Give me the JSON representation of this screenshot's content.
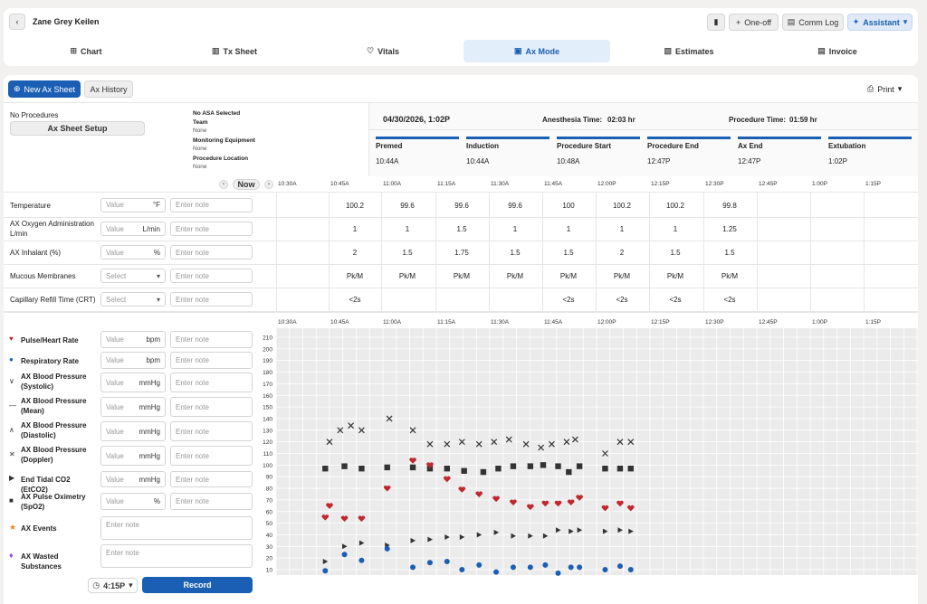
{
  "header": {
    "back_label": "‹",
    "patient_name": "Zane Grey Keilen",
    "oneoff_label": "One-off",
    "commlog_label": "Comm Log",
    "assistant_label": "Assistant"
  },
  "tabs": [
    {
      "label": "Chart"
    },
    {
      "label": "Tx Sheet"
    },
    {
      "label": "Vitals"
    },
    {
      "label": "Ax Mode"
    },
    {
      "label": "Estimates"
    },
    {
      "label": "Invoice"
    }
  ],
  "toolbar": {
    "new_sheet_label": "New Ax Sheet",
    "history_label": "Ax History",
    "print_label": "Print"
  },
  "setup": {
    "no_procedures": "No Procedures",
    "setup_label": "Ax Sheet Setup",
    "asa": "No ASA Selected",
    "team_label": "Team",
    "team_value": "None",
    "equipment_label": "Monitoring Equipment",
    "equipment_value": "None",
    "location_label": "Procedure Location",
    "location_value": "None"
  },
  "summary": {
    "datetime": "04/30/2026, 1:02P",
    "anesthesia_label": "Anesthesia Time:",
    "anesthesia_value": "02:03 hr",
    "procedure_label": "Procedure Time:",
    "procedure_value": "01:59 hr"
  },
  "milestones": [
    {
      "label": "Premed",
      "time": "10:44A"
    },
    {
      "label": "Induction",
      "time": "10:44A"
    },
    {
      "label": "Procedure Start",
      "time": "10:48A"
    },
    {
      "label": "Procedure End",
      "time": "12:47P"
    },
    {
      "label": "Ax End",
      "time": "12:47P"
    },
    {
      "label": "Extubation",
      "time": "1:02P"
    }
  ],
  "now_label": "Now",
  "times": [
    "10:30A",
    "10:45A",
    "11:00A",
    "11:15A",
    "11:30A",
    "11:45A",
    "12:00P",
    "12:15P",
    "12:30P",
    "12:45P",
    "1:00P",
    "1:15P"
  ],
  "placeholders": {
    "value": "Value",
    "note": "Enter note",
    "select": "Select"
  },
  "params": [
    {
      "label": "Temperature",
      "unit": "°F",
      "values": [
        "",
        "100.2",
        "99.6",
        "99.6",
        "99.6",
        "100",
        "100.2",
        "100.2",
        "99.8",
        "",
        "",
        ""
      ]
    },
    {
      "label": "AX Oxygen Administration L/min",
      "unit": "L/min",
      "values": [
        "",
        "1",
        "1",
        "1.5",
        "1",
        "1",
        "1",
        "1",
        "1.25",
        "",
        "",
        ""
      ]
    },
    {
      "label": "AX Inhalant (%)",
      "unit": "%",
      "values": [
        "",
        "2",
        "1.5",
        "1.75",
        "1.5",
        "1.5",
        "2",
        "1.5",
        "1.5",
        "",
        "",
        ""
      ]
    },
    {
      "label": "Mucous Membranes",
      "unit": "",
      "values": [
        "",
        "Pk/M",
        "Pk/M",
        "Pk/M",
        "Pk/M",
        "Pk/M",
        "Pk/M",
        "Pk/M",
        "Pk/M",
        "",
        "",
        ""
      ]
    },
    {
      "label": "Capillary Refill Time (CRT)",
      "unit": "",
      "values": [
        "",
        "<2s",
        "",
        "",
        "",
        "<2s",
        "<2s",
        "<2s",
        "<2s",
        "",
        "",
        ""
      ]
    }
  ],
  "vitals": [
    {
      "label": "Pulse/Heart Rate",
      "unit": "bpm",
      "icon": "heart-icon"
    },
    {
      "label": "Respiratory Rate",
      "unit": "bpm",
      "icon": "dot-icon"
    },
    {
      "label": "AX Blood Pressure (Systolic)",
      "unit": "mmHg",
      "icon": "chevron-down-icon"
    },
    {
      "label": "AX Blood Pressure (Mean)",
      "unit": "mmHg",
      "icon": "dash-icon"
    },
    {
      "label": "AX Blood Pressure (Diastolic)",
      "unit": "mmHg",
      "icon": "chevron-up-icon"
    },
    {
      "label": "AX Blood Pressure (Doppler)",
      "unit": "mmHg",
      "icon": "x-icon"
    },
    {
      "label": "End Tidal CO2 (EtCO2)",
      "unit": "mmHg",
      "icon": "triangle-right-icon"
    },
    {
      "label": "AX Pulse Oximetry (SpO2)",
      "unit": "%",
      "icon": "square-icon"
    }
  ],
  "events": [
    {
      "label": "AX Events",
      "icon": "star-icon"
    },
    {
      "label": "AX Wasted Substances",
      "icon": "drop-icon"
    }
  ],
  "record": {
    "time": "4:15P",
    "label": "Record"
  },
  "colors": {
    "accent": "#1a5fb4",
    "heart": "#c0282d",
    "resp": "#1a5fb4",
    "dark": "#333333",
    "event": "#e8892b",
    "wasted": "#9b4fd0"
  },
  "chart_data": {
    "type": "scatter",
    "ylim": [
      10,
      210
    ],
    "yticks": [
      10,
      20,
      30,
      40,
      50,
      60,
      70,
      80,
      90,
      100,
      110,
      120,
      130,
      140,
      150,
      160,
      170,
      180,
      190,
      200,
      210
    ],
    "x_labels": [
      "10:30A",
      "10:45A",
      "11:00A",
      "11:15A",
      "11:30A",
      "11:45A",
      "12:00P",
      "12:15P",
      "12:30P",
      "12:45P",
      "1:00P",
      "1:15P"
    ],
    "series": [
      {
        "marker": "x",
        "points": [
          [
            10.75,
            120
          ],
          [
            10.8,
            130
          ],
          [
            10.85,
            134
          ],
          [
            10.9,
            130
          ],
          [
            11.03,
            140
          ],
          [
            11.14,
            130
          ],
          [
            11.22,
            118
          ],
          [
            11.3,
            118
          ],
          [
            11.37,
            120
          ],
          [
            11.45,
            118
          ],
          [
            11.52,
            120
          ],
          [
            11.59,
            122
          ],
          [
            11.67,
            118
          ],
          [
            11.74,
            115
          ],
          [
            11.79,
            118
          ],
          [
            11.86,
            120
          ],
          [
            11.9,
            122
          ],
          [
            12.04,
            110
          ],
          [
            12.11,
            120
          ],
          [
            12.16,
            120
          ]
        ]
      },
      {
        "marker": "square",
        "points": [
          [
            10.73,
            97
          ],
          [
            10.82,
            99
          ],
          [
            10.9,
            97
          ],
          [
            11.02,
            98
          ],
          [
            11.14,
            98
          ],
          [
            11.22,
            97
          ],
          [
            11.3,
            97
          ],
          [
            11.38,
            95
          ],
          [
            11.47,
            94
          ],
          [
            11.54,
            97
          ],
          [
            11.61,
            99
          ],
          [
            11.69,
            99
          ],
          [
            11.75,
            100
          ],
          [
            11.82,
            99
          ],
          [
            11.87,
            94
          ],
          [
            11.92,
            99
          ],
          [
            12.04,
            97
          ],
          [
            12.11,
            97
          ],
          [
            12.16,
            97
          ]
        ]
      },
      {
        "marker": "heart",
        "points": [
          [
            10.73,
            55
          ],
          [
            10.75,
            65
          ],
          [
            10.82,
            54
          ],
          [
            10.9,
            54
          ],
          [
            11.02,
            80
          ],
          [
            11.14,
            104
          ],
          [
            11.22,
            100
          ],
          [
            11.3,
            88
          ],
          [
            11.37,
            79
          ],
          [
            11.45,
            75
          ],
          [
            11.53,
            71
          ],
          [
            11.61,
            68
          ],
          [
            11.69,
            64
          ],
          [
            11.76,
            67
          ],
          [
            11.82,
            67
          ],
          [
            11.88,
            68
          ],
          [
            11.92,
            72
          ],
          [
            12.04,
            63
          ],
          [
            12.11,
            67
          ],
          [
            12.16,
            63
          ]
        ]
      },
      {
        "marker": "triangle",
        "points": [
          [
            10.73,
            17
          ],
          [
            10.82,
            30
          ],
          [
            10.9,
            33
          ],
          [
            11.02,
            31
          ],
          [
            11.14,
            35
          ],
          [
            11.22,
            36
          ],
          [
            11.3,
            38
          ],
          [
            11.37,
            38
          ],
          [
            11.45,
            40
          ],
          [
            11.53,
            42
          ],
          [
            11.61,
            39
          ],
          [
            11.69,
            39
          ],
          [
            11.76,
            39
          ],
          [
            11.82,
            44
          ],
          [
            11.88,
            43
          ],
          [
            11.92,
            44
          ],
          [
            12.04,
            43
          ],
          [
            12.11,
            44
          ],
          [
            12.16,
            43
          ]
        ]
      },
      {
        "marker": "dot",
        "points": [
          [
            10.73,
            9
          ],
          [
            10.82,
            23
          ],
          [
            10.9,
            18
          ],
          [
            11.02,
            28
          ],
          [
            11.14,
            12
          ],
          [
            11.22,
            16
          ],
          [
            11.3,
            17
          ],
          [
            11.37,
            10
          ],
          [
            11.45,
            14
          ],
          [
            11.53,
            8
          ],
          [
            11.61,
            12
          ],
          [
            11.69,
            12
          ],
          [
            11.76,
            14
          ],
          [
            11.82,
            7
          ],
          [
            11.88,
            12
          ],
          [
            11.92,
            12
          ],
          [
            12.04,
            10
          ],
          [
            12.11,
            13
          ],
          [
            12.16,
            10
          ]
        ]
      }
    ]
  }
}
